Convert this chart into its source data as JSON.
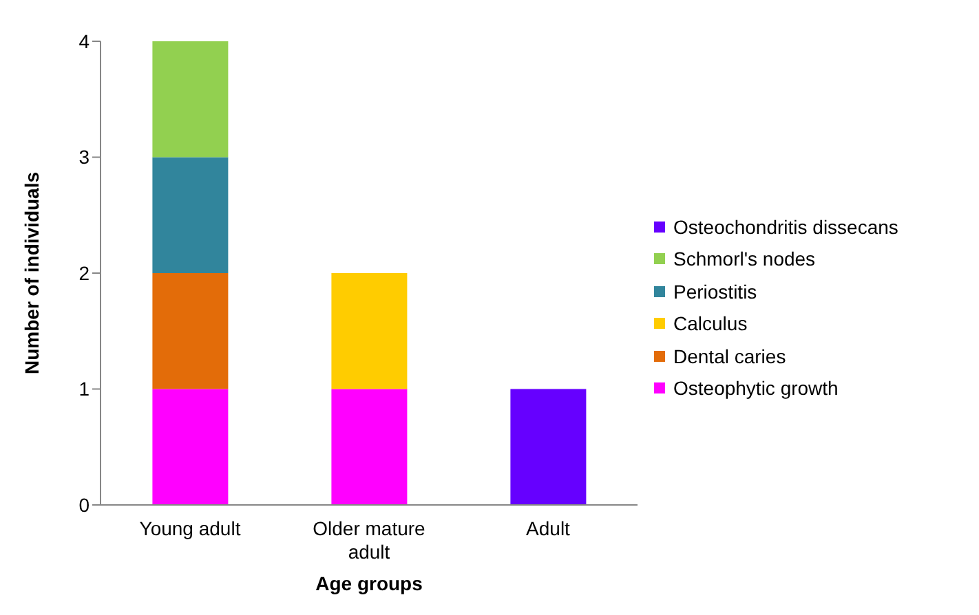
{
  "chart_data": {
    "type": "bar",
    "stacked": true,
    "xlabel": "Age groups",
    "ylabel": "Number of individuals",
    "categories": [
      "Young adult",
      "Older mature adult",
      "Adult"
    ],
    "series": [
      {
        "name": "Osteophytic growth",
        "color": "#ff00ff",
        "values": [
          1,
          1,
          0
        ]
      },
      {
        "name": "Dental caries",
        "color": "#e36c09",
        "values": [
          1,
          0,
          0
        ]
      },
      {
        "name": "Calculus",
        "color": "#ffcc00",
        "values": [
          0,
          1,
          0
        ]
      },
      {
        "name": "Periostitis",
        "color": "#31859c",
        "values": [
          1,
          0,
          0
        ]
      },
      {
        "name": "Schmorl's nodes",
        "color": "#92d050",
        "values": [
          1,
          0,
          0
        ]
      },
      {
        "name": "Osteochondritis dissecans",
        "color": "#6600ff",
        "values": [
          0,
          0,
          1
        ]
      }
    ],
    "ylim": [
      0,
      4
    ],
    "yticks": [
      0,
      1,
      2,
      3,
      4
    ],
    "grid": false,
    "legend": "right"
  }
}
